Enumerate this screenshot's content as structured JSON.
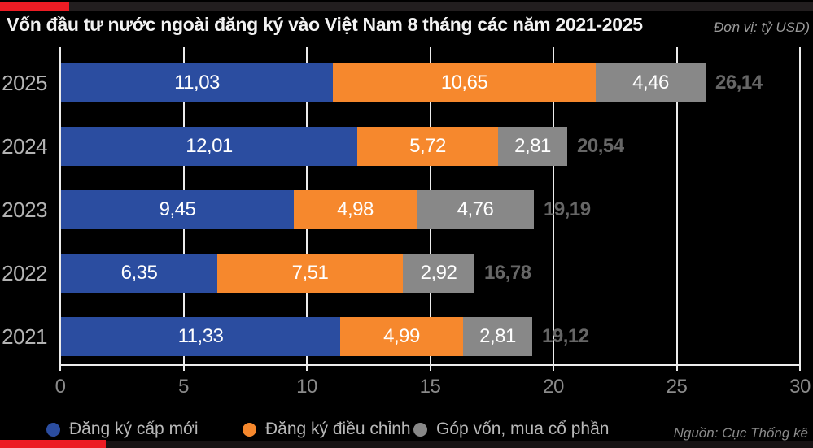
{
  "title": "Vốn đầu tư nước ngoài đăng ký vào Việt Nam 8 tháng các năm 2021-2025",
  "unit_label": "Đơn vị: tỷ USD)",
  "source_label": "Nguồn: Cục Thống kê",
  "palette": {
    "accent_red": "#ec1c24",
    "series_blue": "#2b4da0",
    "series_orange": "#f6882d",
    "series_gray": "#888888",
    "background": "#000000",
    "grid": "#ececec"
  },
  "chart_data": {
    "type": "bar",
    "orientation": "horizontal",
    "stacked": true,
    "grid": true,
    "legend_position": "bottom",
    "categories": [
      "2025",
      "2024",
      "2023",
      "2022",
      "2021"
    ],
    "series": [
      {
        "name": "Đăng ký cấp mới",
        "color": "#2b4da0",
        "values": [
          11.03,
          12.01,
          9.45,
          6.35,
          11.33
        ],
        "labels": [
          "11,03",
          "12,01",
          "9,45",
          "6,35",
          "11,33"
        ]
      },
      {
        "name": "Đăng ký điều chỉnh",
        "color": "#f6882d",
        "values": [
          10.65,
          5.72,
          4.98,
          7.51,
          4.99
        ],
        "labels": [
          "10,65",
          "5,72",
          "4,98",
          "7,51",
          "4,99"
        ]
      },
      {
        "name": "Góp vốn, mua cổ phần",
        "color": "#888888",
        "values": [
          4.46,
          2.81,
          4.76,
          2.92,
          2.81
        ],
        "labels": [
          "4,46",
          "2,81",
          "4,76",
          "2,92",
          "2,81"
        ]
      }
    ],
    "totals": [
      26.14,
      20.54,
      19.19,
      16.78,
      19.12
    ],
    "total_labels": [
      "26,14",
      "20,54",
      "19,19",
      "16,78",
      "19,12"
    ],
    "x_ticks": [
      0,
      5,
      10,
      15,
      20,
      25,
      30
    ],
    "xlim": [
      0,
      30
    ]
  }
}
